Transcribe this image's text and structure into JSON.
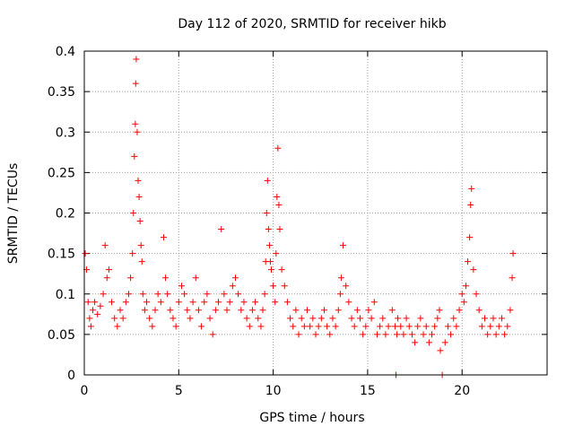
{
  "chart_data": {
    "type": "scatter",
    "title": "Day 112 of 2020, SRMTID for receiver hikb",
    "xlabel": "GPS time / hours",
    "ylabel": "SRMTID / TECUs",
    "xlim": [
      0,
      24.5
    ],
    "ylim": [
      0,
      0.4
    ],
    "x_ticks": [
      0,
      5,
      10,
      15,
      20
    ],
    "x_tick_labels": [
      "0",
      "5",
      "10",
      "15",
      "20"
    ],
    "y_ticks": [
      0,
      0.05,
      0.1,
      0.15,
      0.2,
      0.25,
      0.3,
      0.35,
      0.4
    ],
    "y_tick_labels": [
      "0",
      "0.05",
      "0.1",
      "0.15",
      "0.2",
      "0.25",
      "0.3",
      "0.35",
      "0.4"
    ],
    "grid": true,
    "marker": "+",
    "series": [
      {
        "name": "SRMTID",
        "color": "#ff0000",
        "x": [
          0.05,
          0.12,
          0.2,
          0.28,
          0.35,
          0.45,
          0.55,
          0.7,
          0.85,
          1.0,
          1.1,
          1.2,
          1.3,
          1.45,
          1.6,
          1.75,
          1.9,
          2.05,
          2.2,
          2.35,
          2.45,
          2.55,
          2.6,
          2.65,
          2.7,
          2.72,
          2.75,
          2.8,
          2.85,
          2.9,
          2.95,
          3.0,
          3.05,
          3.1,
          3.2,
          3.3,
          3.45,
          3.6,
          3.75,
          3.9,
          4.05,
          4.2,
          4.3,
          4.4,
          4.55,
          4.7,
          4.85,
          5.0,
          5.15,
          5.3,
          5.45,
          5.6,
          5.75,
          5.9,
          6.05,
          6.2,
          6.35,
          6.5,
          6.65,
          6.8,
          6.95,
          7.1,
          7.25,
          7.4,
          7.55,
          7.7,
          7.85,
          8.0,
          8.15,
          8.3,
          8.45,
          8.6,
          8.75,
          8.9,
          9.05,
          9.2,
          9.35,
          9.45,
          9.55,
          9.6,
          9.65,
          9.7,
          9.75,
          9.8,
          9.85,
          9.9,
          10.0,
          10.1,
          10.15,
          10.2,
          10.25,
          10.3,
          10.35,
          10.45,
          10.6,
          10.75,
          10.9,
          11.05,
          11.2,
          11.35,
          11.5,
          11.65,
          11.8,
          11.95,
          12.1,
          12.25,
          12.4,
          12.55,
          12.7,
          12.85,
          13.0,
          13.15,
          13.3,
          13.45,
          13.55,
          13.6,
          13.7,
          13.85,
          14.0,
          14.15,
          14.3,
          14.45,
          14.6,
          14.75,
          14.9,
          15.05,
          15.2,
          15.35,
          15.5,
          15.65,
          15.8,
          15.95,
          16.1,
          16.3,
          16.45,
          16.5,
          16.55,
          16.6,
          16.75,
          16.9,
          17.05,
          17.2,
          17.35,
          17.5,
          17.65,
          17.8,
          17.95,
          18.1,
          18.25,
          18.4,
          18.55,
          18.7,
          18.8,
          18.85,
          18.95,
          19.1,
          19.25,
          19.4,
          19.55,
          19.7,
          19.85,
          20.0,
          20.1,
          20.2,
          20.3,
          20.4,
          20.45,
          20.5,
          20.6,
          20.75,
          20.9,
          21.05,
          21.2,
          21.35,
          21.5,
          21.65,
          21.8,
          21.95,
          22.1,
          22.25,
          22.4,
          22.55,
          22.65,
          22.7
        ],
        "y": [
          0.15,
          0.13,
          0.09,
          0.07,
          0.06,
          0.08,
          0.09,
          0.075,
          0.085,
          0.1,
          0.16,
          0.12,
          0.13,
          0.09,
          0.07,
          0.06,
          0.08,
          0.07,
          0.09,
          0.1,
          0.12,
          0.15,
          0.2,
          0.27,
          0.31,
          0.36,
          0.39,
          0.3,
          0.24,
          0.22,
          0.19,
          0.16,
          0.14,
          0.1,
          0.08,
          0.09,
          0.07,
          0.06,
          0.08,
          0.1,
          0.09,
          0.17,
          0.12,
          0.1,
          0.08,
          0.07,
          0.06,
          0.09,
          0.11,
          0.1,
          0.08,
          0.07,
          0.09,
          0.12,
          0.08,
          0.06,
          0.09,
          0.1,
          0.07,
          0.05,
          0.08,
          0.09,
          0.18,
          0.1,
          0.08,
          0.09,
          0.11,
          0.12,
          0.1,
          0.08,
          0.09,
          0.07,
          0.06,
          0.08,
          0.09,
          0.07,
          0.06,
          0.08,
          0.1,
          0.14,
          0.2,
          0.24,
          0.18,
          0.16,
          0.14,
          0.13,
          0.11,
          0.09,
          0.15,
          0.22,
          0.28,
          0.21,
          0.18,
          0.13,
          0.11,
          0.09,
          0.07,
          0.06,
          0.08,
          0.05,
          0.07,
          0.06,
          0.08,
          0.06,
          0.07,
          0.05,
          0.06,
          0.07,
          0.08,
          0.06,
          0.05,
          0.07,
          0.06,
          0.08,
          0.1,
          0.12,
          0.16,
          0.11,
          0.09,
          0.07,
          0.06,
          0.08,
          0.07,
          0.05,
          0.06,
          0.08,
          0.07,
          0.09,
          0.05,
          0.06,
          0.07,
          0.05,
          0.06,
          0.08,
          0.06,
          0.0,
          0.05,
          0.07,
          0.06,
          0.05,
          0.07,
          0.06,
          0.05,
          0.04,
          0.06,
          0.07,
          0.05,
          0.06,
          0.04,
          0.05,
          0.06,
          0.07,
          0.08,
          0.03,
          0.0,
          0.04,
          0.06,
          0.05,
          0.07,
          0.06,
          0.08,
          0.1,
          0.09,
          0.11,
          0.14,
          0.17,
          0.21,
          0.23,
          0.13,
          0.1,
          0.08,
          0.06,
          0.07,
          0.05,
          0.06,
          0.07,
          0.05,
          0.06,
          0.07,
          0.05,
          0.06,
          0.08,
          0.12,
          0.15
        ]
      }
    ]
  }
}
